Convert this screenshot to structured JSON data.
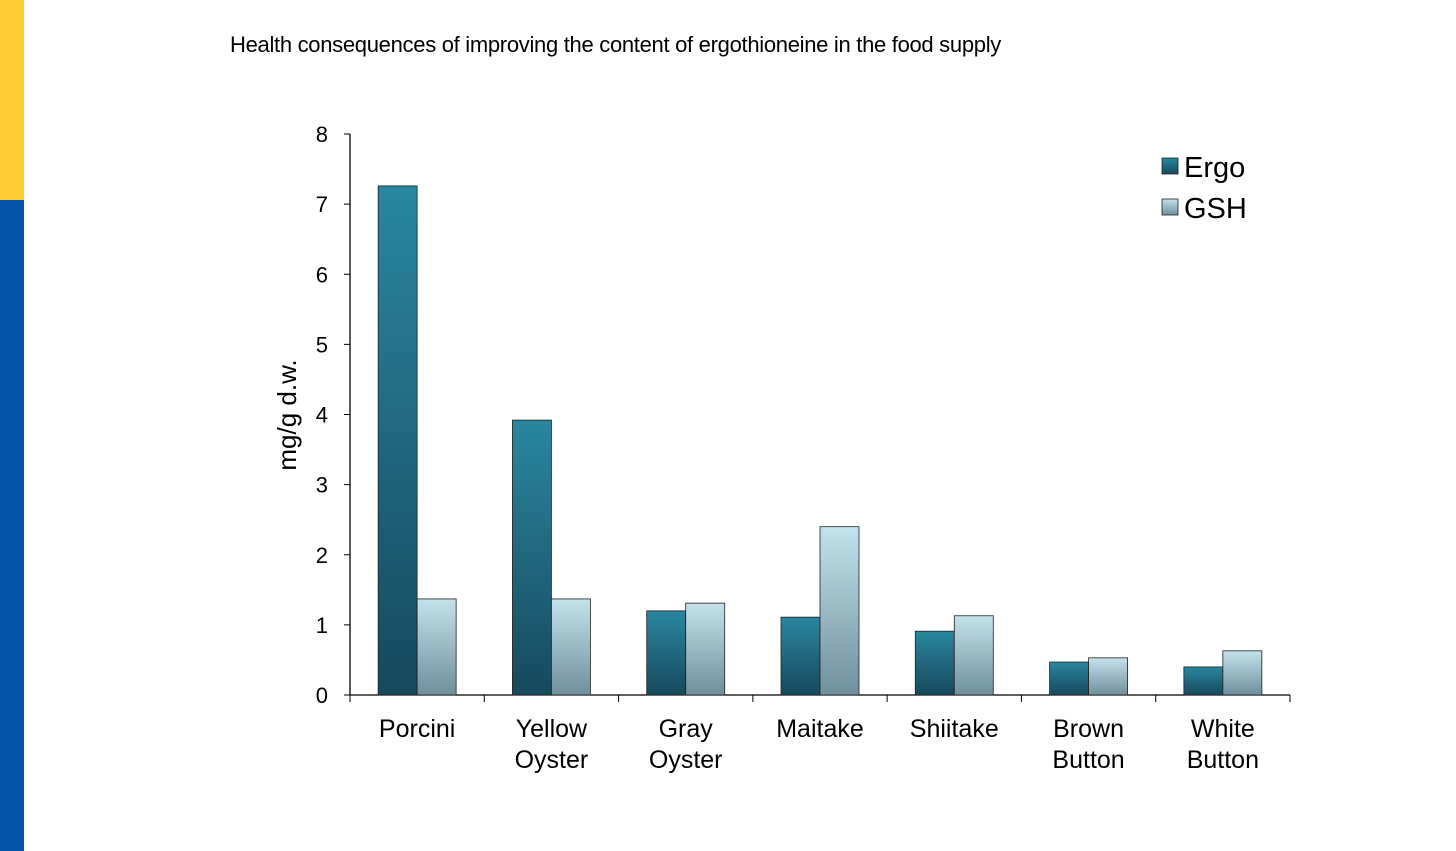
{
  "chart_data": {
    "type": "bar",
    "title": "Health consequences of improving the content of ergothioneine in the food supply",
    "xlabel": "",
    "ylabel": "mg/g d.w.",
    "ylim": [
      0,
      8
    ],
    "yticks": [
      "0",
      "1",
      "2",
      "3",
      "4",
      "5",
      "6",
      "7",
      "8"
    ],
    "categories": [
      [
        "Porcini"
      ],
      [
        "Yellow",
        "Oyster"
      ],
      [
        "Gray",
        "Oyster"
      ],
      [
        "Maitake"
      ],
      [
        "Shiitake"
      ],
      [
        "Brown",
        "Button"
      ],
      [
        "White",
        "Button"
      ]
    ],
    "series": [
      {
        "name": "Ergo",
        "values": [
          7.26,
          3.92,
          1.2,
          1.11,
          0.91,
          0.47,
          0.4
        ],
        "color": "#1f6f85"
      },
      {
        "name": "GSH",
        "values": [
          1.37,
          1.37,
          1.31,
          2.4,
          1.13,
          0.53,
          0.63
        ],
        "color": "#a9cfdc"
      }
    ],
    "legend_position": "top-right",
    "grid": false
  },
  "colors": {
    "accent_yellow": "#fecd35",
    "accent_blue": "#0553a6"
  }
}
